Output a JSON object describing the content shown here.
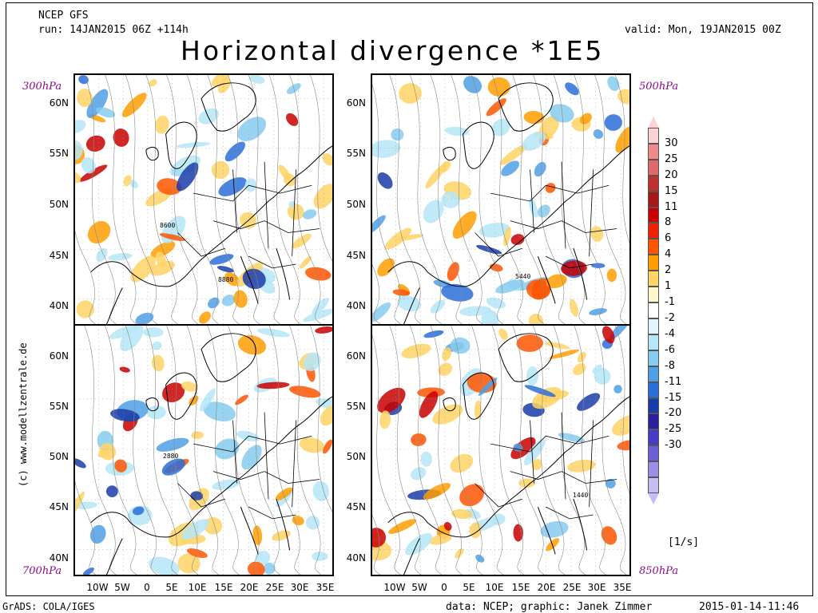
{
  "header": {
    "model": "NCEP GFS",
    "run": "run: 14JAN2015 06Z +114h",
    "valid": "valid: Mon, 19JAN2015 00Z",
    "title": "Horizontal divergence *1E5"
  },
  "panels": [
    {
      "level": "300hPa",
      "contour_label_a": "8600",
      "contour_label_b": "8880"
    },
    {
      "level": "500hPa",
      "contour_label_a": "5440"
    },
    {
      "level": "700hPa",
      "contour_label_a": "2880"
    },
    {
      "level": "850hPa",
      "contour_label_a": "1440"
    }
  ],
  "lat_labels": [
    "60N",
    "55N",
    "50N",
    "45N",
    "40N"
  ],
  "lon_labels": [
    "10W",
    "5W",
    "0",
    "5E",
    "10E",
    "15E",
    "20E",
    "25E",
    "30E",
    "35E"
  ],
  "colorbar": {
    "labels": [
      "30",
      "25",
      "20",
      "15",
      "11",
      "8",
      "6",
      "4",
      "2",
      "1",
      "-1",
      "-2",
      "-4",
      "-6",
      "-8",
      "-11",
      "-15",
      "-20",
      "-25",
      "-30"
    ],
    "colors": [
      "#fbd3d3",
      "#f08a8a",
      "#e06a6a",
      "#c03030",
      "#a81818",
      "#c80000",
      "#ee2200",
      "#ff5500",
      "#ff9d00",
      "#ffd466",
      "#fff6cc",
      "#ffffff",
      "#e1f4fb",
      "#b6e6f7",
      "#86cdef",
      "#4f9fe5",
      "#2a6fd9",
      "#1a3ca8",
      "#2b1f9e",
      "#4a3bc7",
      "#6b5ed6",
      "#9a8ee9",
      "#c6bdf5"
    ],
    "unit": "[1/s]"
  },
  "footer": {
    "left": "GrADS: COLA/IGES",
    "credit": "data: NCEP; graphic: Janek Zimmer",
    "date": "2015-01-14-11:46",
    "vertical": "(c) www.modellzentrale.de"
  }
}
